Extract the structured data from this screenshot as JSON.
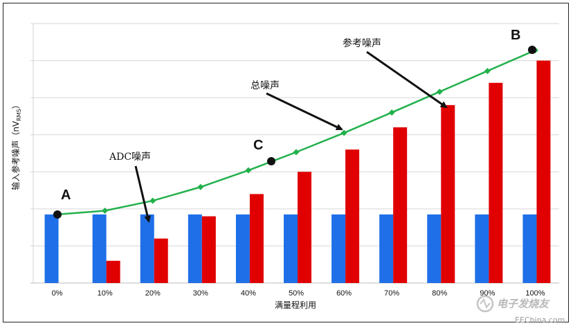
{
  "chart_data": {
    "type": "bar",
    "title": "",
    "xlabel": "满量程利用",
    "ylabel": "输入参考噪声（nV",
    "ylabel_sub": "RMS",
    "ylabel_close": "）",
    "categories": [
      "0%",
      "10%",
      "20%",
      "30%",
      "40%",
      "50%",
      "60%",
      "70%",
      "80%",
      "90%",
      "100%"
    ],
    "ylim": [
      0,
      7
    ],
    "series": [
      {
        "name": "ADC噪声",
        "color": "#1f6fe8",
        "values": [
          1.85,
          1.85,
          1.85,
          1.85,
          1.85,
          1.85,
          1.85,
          1.85,
          1.85,
          1.85,
          1.85
        ]
      },
      {
        "name": "参考噪声",
        "color": "#e00000",
        "values": [
          0,
          0.6,
          1.2,
          1.8,
          2.4,
          3.0,
          3.6,
          4.2,
          4.8,
          5.4,
          6.0
        ]
      },
      {
        "name": "总噪声",
        "type": "line",
        "color": "#22b14c",
        "values": [
          1.85,
          1.95,
          2.22,
          2.59,
          3.04,
          3.53,
          4.05,
          4.6,
          5.16,
          5.72,
          6.28
        ]
      }
    ],
    "annotations": [
      {
        "text": "ADC噪声"
      },
      {
        "text": "总噪声"
      },
      {
        "text": "参考噪声"
      }
    ],
    "points": [
      {
        "label": "A",
        "category": "0%",
        "value": 1.85
      },
      {
        "label": "C",
        "category": "45%",
        "value": 3.3
      },
      {
        "label": "B",
        "category": "100%",
        "value": 6.28
      }
    ]
  },
  "watermark": {
    "line1": "电子发烧友",
    "line2": "EEChina.com"
  }
}
